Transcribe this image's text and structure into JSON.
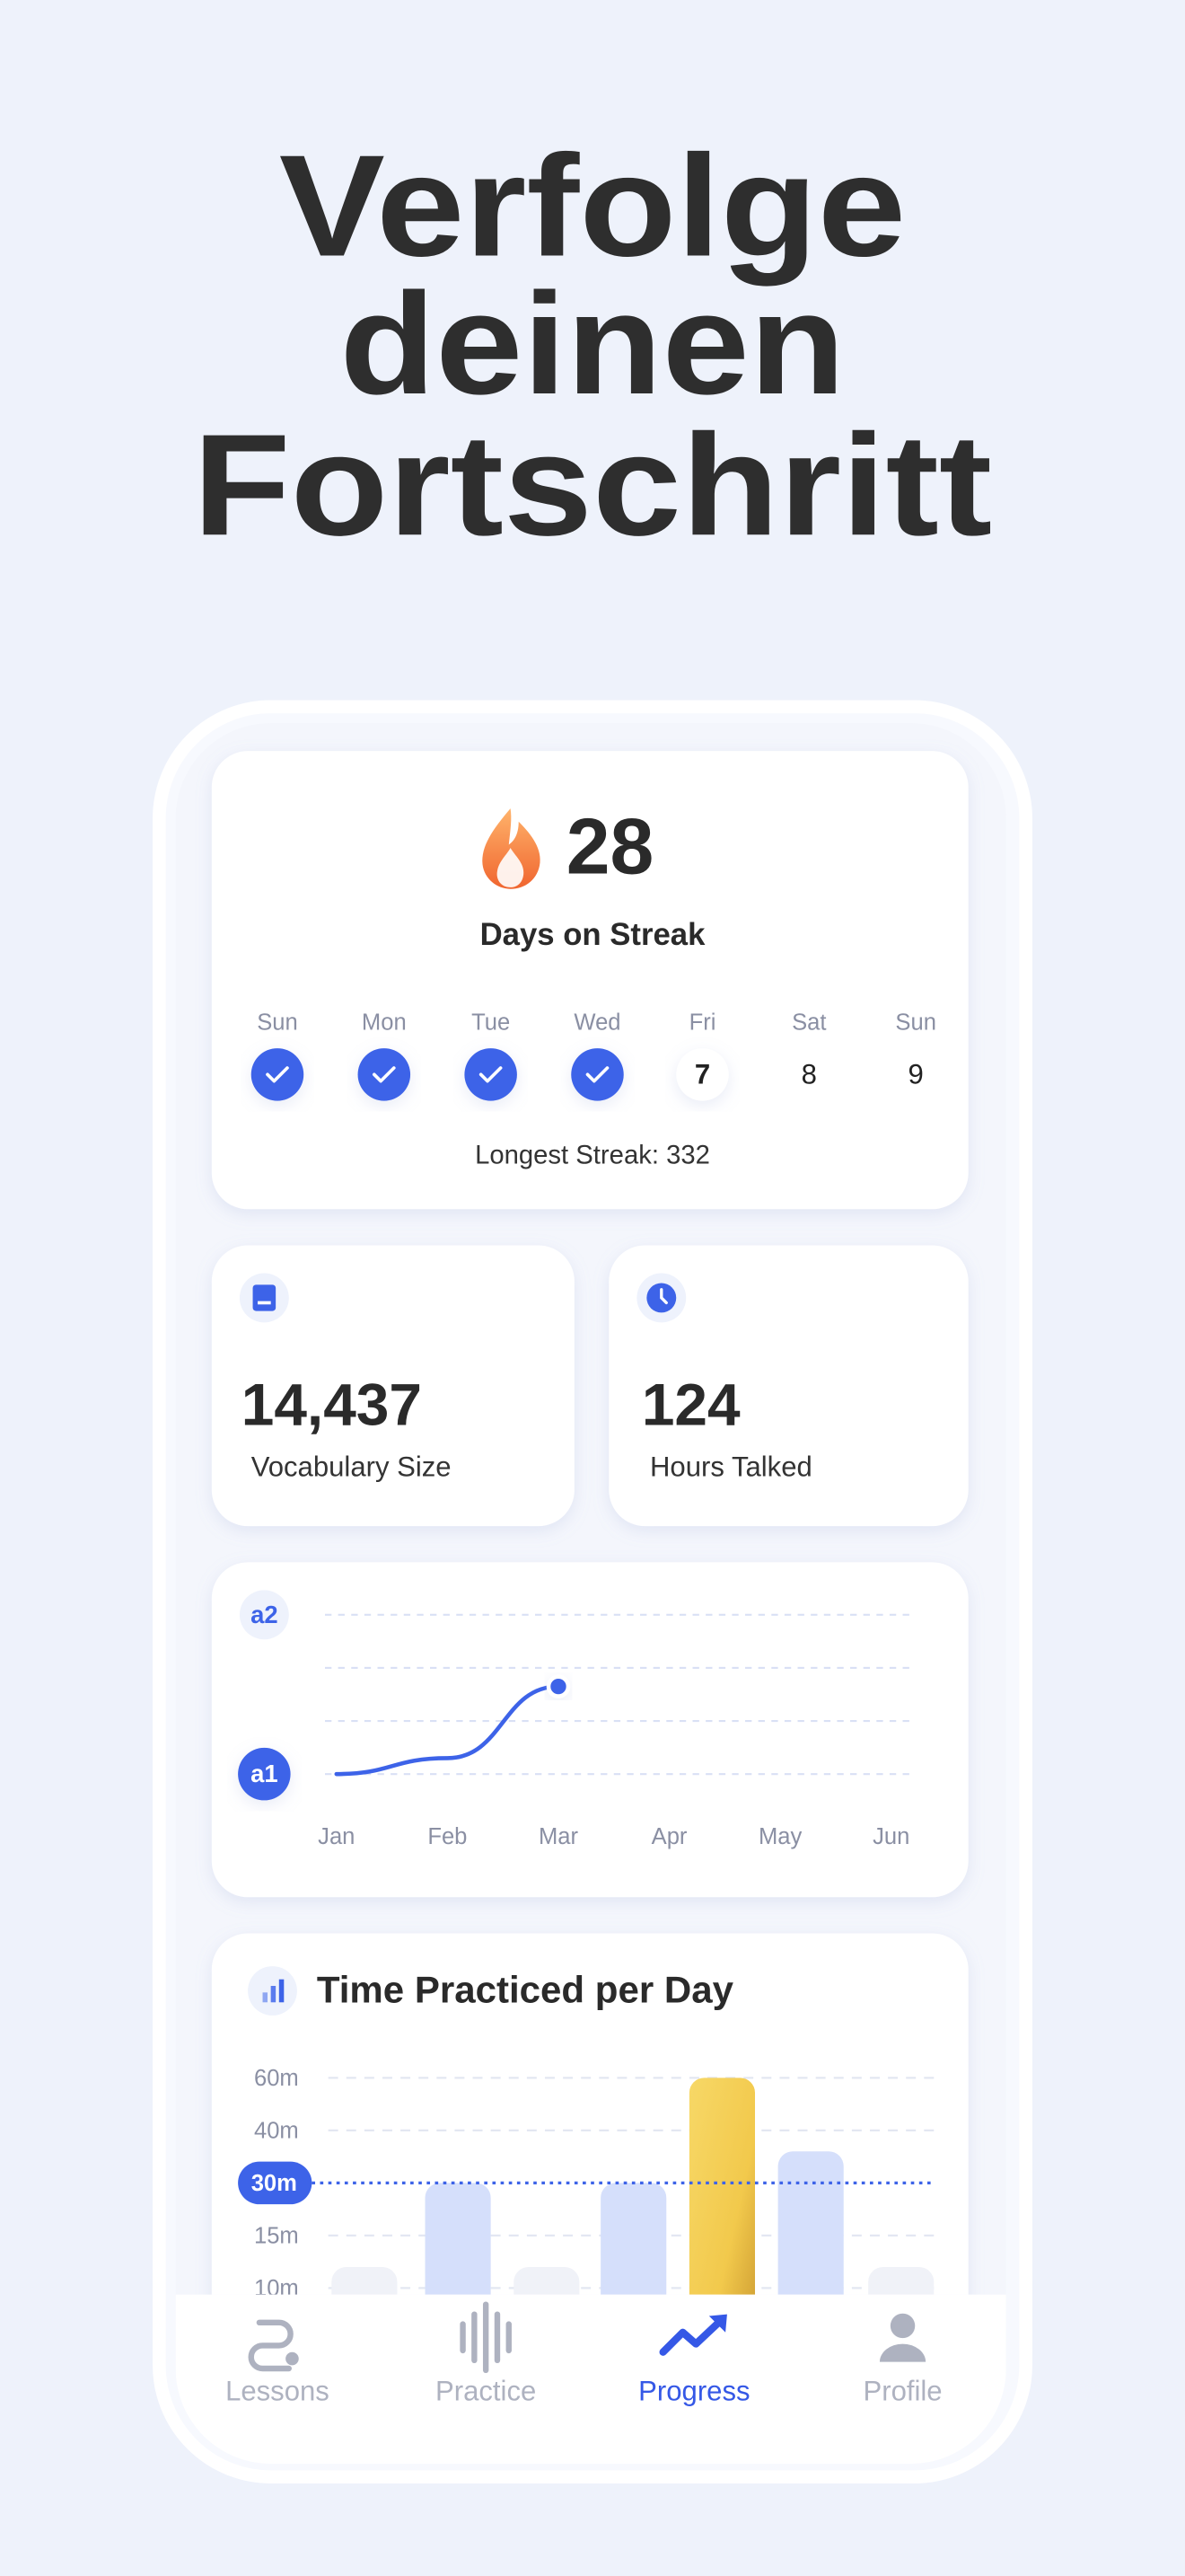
{
  "headline": [
    "Verfolge",
    "deinen",
    "Fortschritt"
  ],
  "streak": {
    "count": 28,
    "label": "Days on Streak",
    "days": [
      {
        "name": "Sun",
        "checked": true
      },
      {
        "name": "Mon",
        "checked": true
      },
      {
        "name": "Tue",
        "checked": true
      },
      {
        "name": "Wed",
        "checked": true
      },
      {
        "name": "Fri",
        "date": 7,
        "today": true
      },
      {
        "name": "Sat",
        "date": 8
      },
      {
        "name": "Sun",
        "date": 9
      }
    ],
    "longest_label": "Longest Streak:",
    "longest_value": 332
  },
  "stats": [
    {
      "value": "14,437",
      "label": "Vocabulary Size"
    },
    {
      "value": 124,
      "label": "Hours Talked"
    }
  ],
  "level_chart": {
    "type": "line",
    "categories": [
      "Jan",
      "Feb",
      "Mar",
      "Apr",
      "May",
      "Jun"
    ],
    "values": [
      1,
      1.1,
      1.55,
      null,
      null,
      null
    ],
    "color": "#3d63e8",
    "ylim": [
      1,
      2
    ],
    "yticks": [
      {
        "value": 1,
        "label": "a1"
      },
      {
        "value": 2,
        "label": "a2"
      }
    ],
    "grid": true
  },
  "time_chart": {
    "type": "bar",
    "title": "Time Practiced per Day",
    "values": [
      12,
      30,
      12,
      30,
      60,
      36,
      12
    ],
    "color": "#d5dffb",
    "highlight": 4,
    "yticks": [
      {
        "value": 60,
        "label": "60m"
      },
      {
        "value": 40,
        "label": "40m"
      },
      {
        "value": 30,
        "label": "30m",
        "highlight": true
      },
      {
        "value": 15,
        "label": "15m"
      },
      {
        "value": 10,
        "label": "10m"
      }
    ],
    "grid": true
  },
  "nav": [
    {
      "label": "Lessons"
    },
    {
      "label": "Practice"
    },
    {
      "label": "Progress",
      "active": true
    },
    {
      "label": "Profile"
    }
  ]
}
